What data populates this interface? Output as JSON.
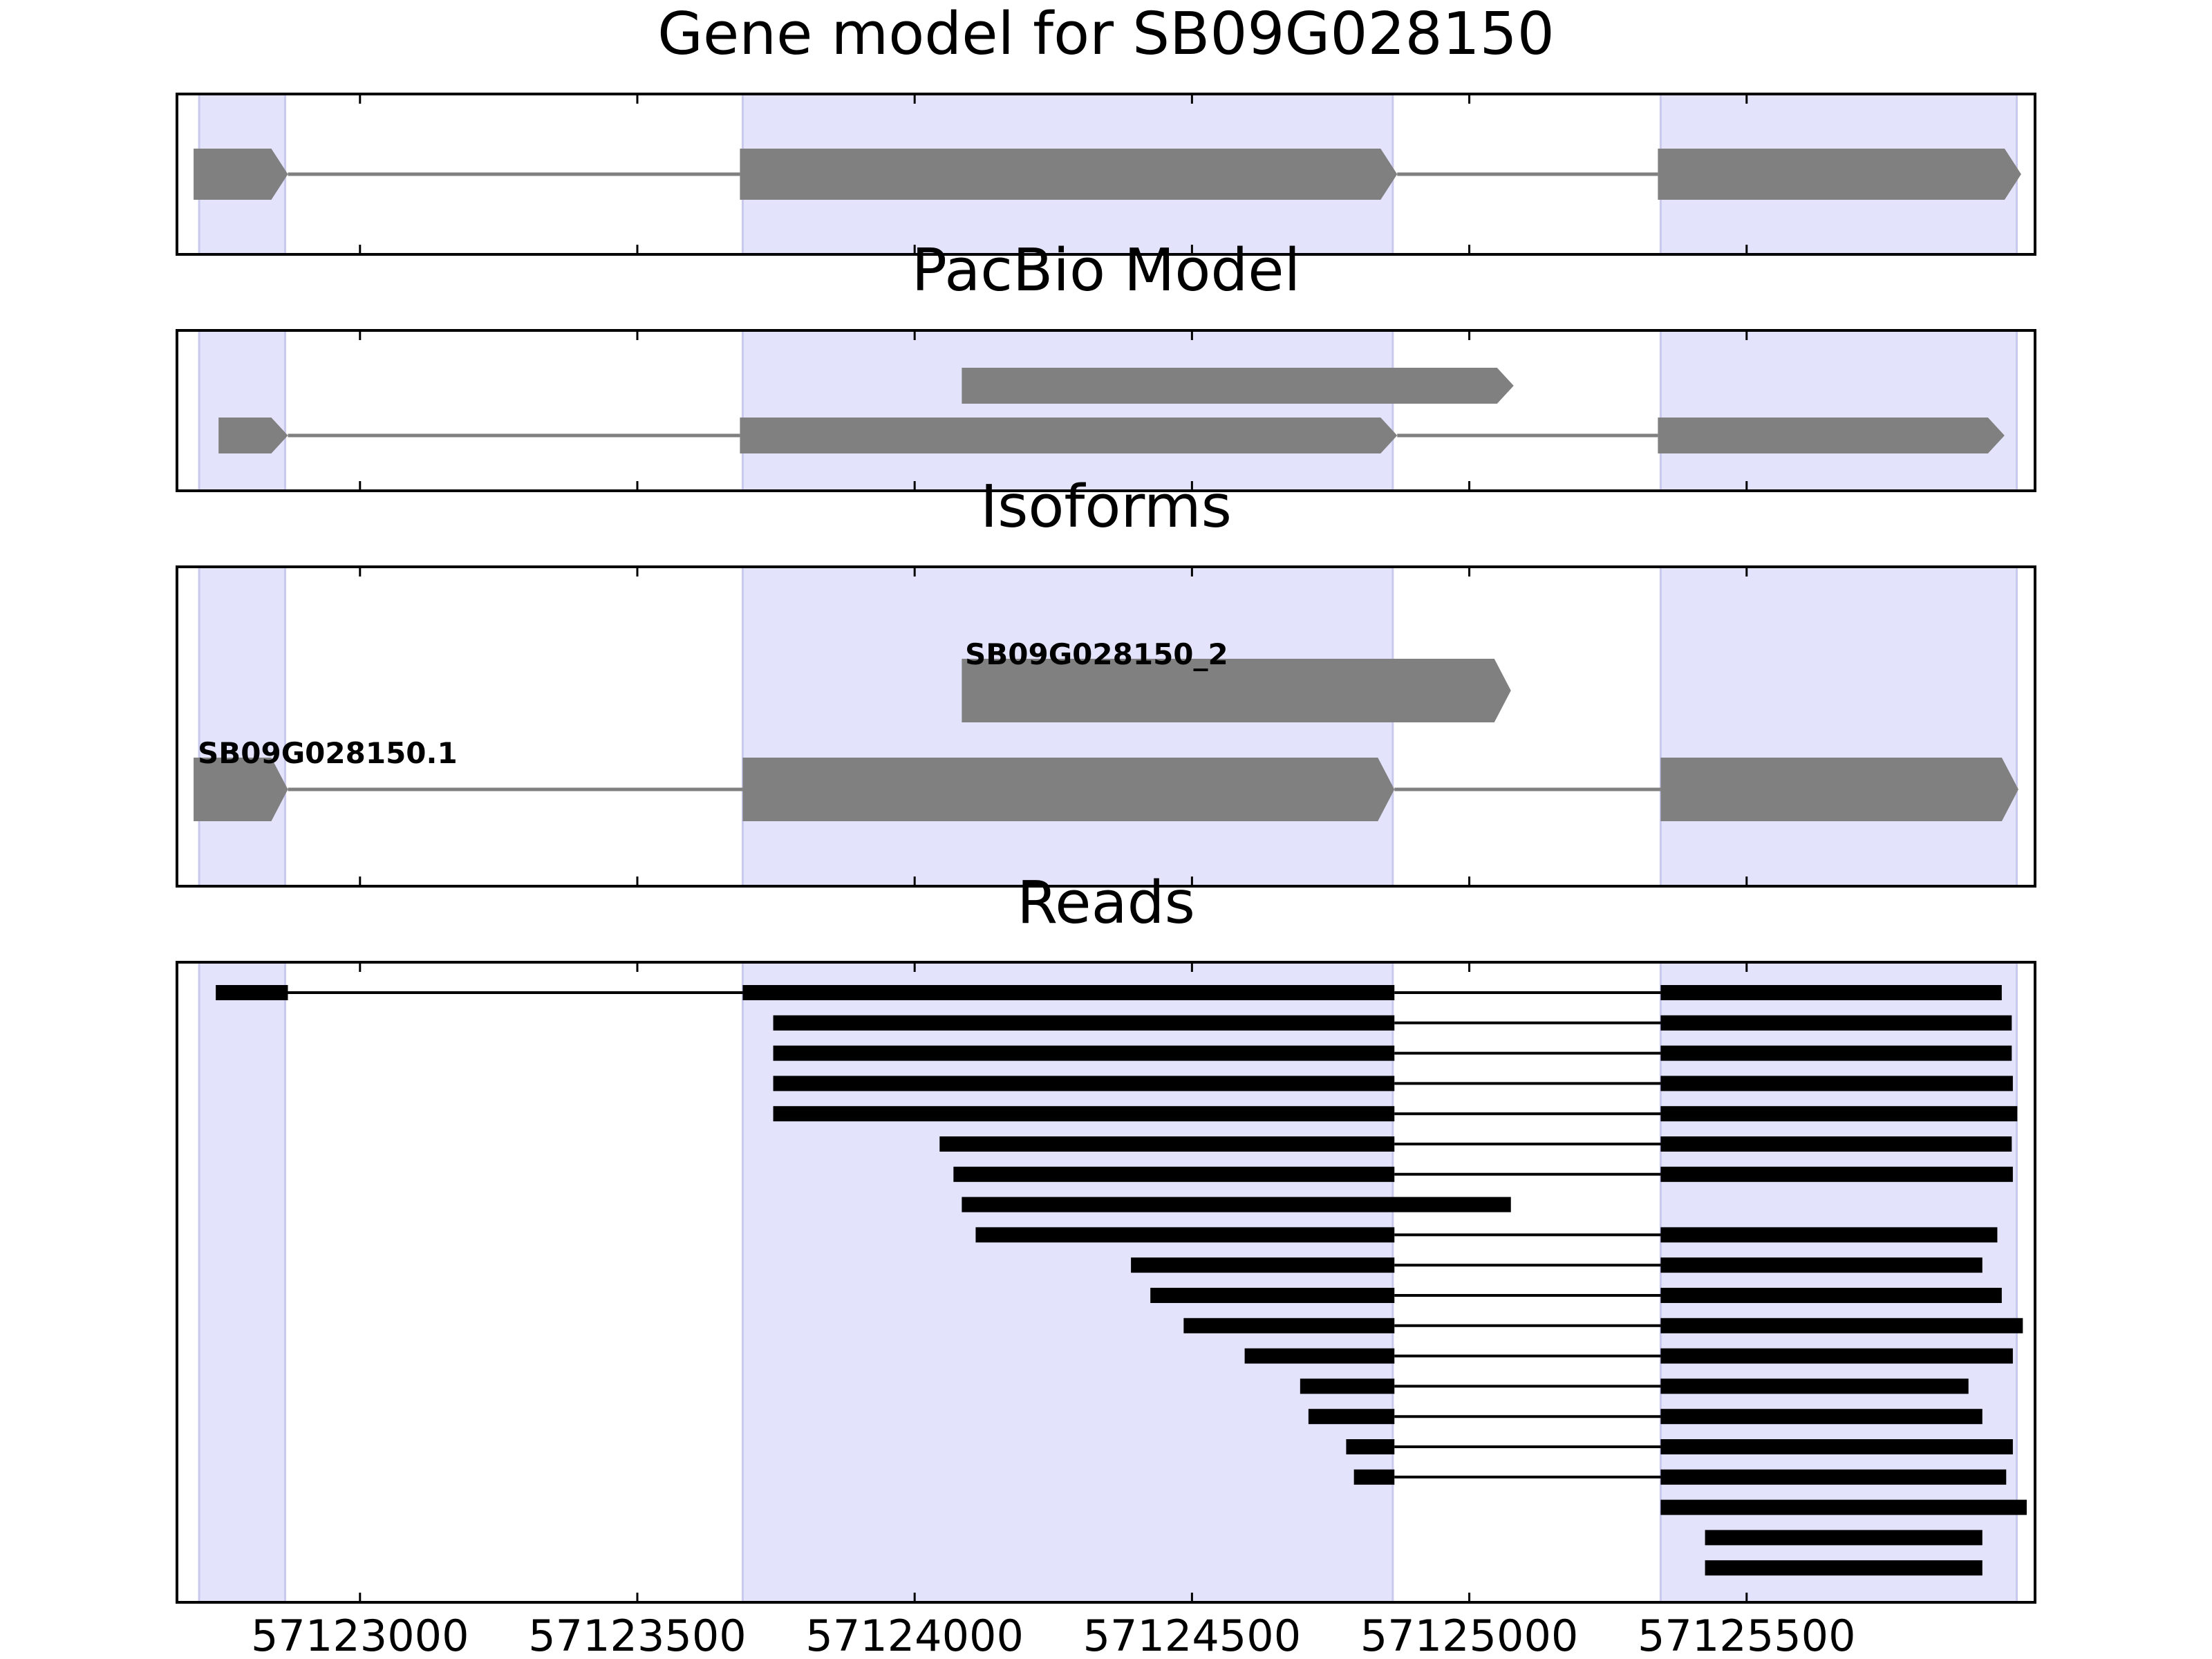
{
  "colors": {
    "exon_region": "#e3e3fb",
    "exon_region_edge": "#c9c9ee",
    "feature": "#808080",
    "read": "#000000",
    "frame": "#000000"
  },
  "chart_data": {
    "type": "gene-track",
    "x_axis": {
      "xlim": [
        57122670,
        57126020
      ],
      "ticks": [
        57123000,
        57123500,
        57124000,
        57124500,
        57125000,
        57125500
      ],
      "tick_labels": [
        "57123000",
        "57123500",
        "57124000",
        "57124500",
        "57125000",
        "57125500"
      ]
    },
    "exon_regions": [
      [
        57122710,
        57122865
      ],
      [
        57123690,
        57124862
      ],
      [
        57125345,
        57125987
      ]
    ],
    "panels": [
      {
        "id": "gene-model",
        "title": "Gene model for SB09G028150",
        "transcripts": [
          {
            "label": "",
            "row": 0,
            "exons": [
              [
                57122700,
                57122870
              ],
              [
                57123685,
                57124870
              ],
              [
                57125340,
                57125995
              ]
            ]
          }
        ]
      },
      {
        "id": "pacbio",
        "title": "PacBio Model",
        "transcripts": [
          {
            "label": "",
            "row": 0,
            "exons": [
              [
                57122745,
                57122870
              ],
              [
                57123685,
                57124870
              ],
              [
                57125340,
                57125965
              ]
            ]
          },
          {
            "label": "",
            "row": 1,
            "exons": [
              [
                57124085,
                57125080
              ]
            ]
          }
        ]
      },
      {
        "id": "isoforms",
        "title": "Isoforms",
        "transcripts": [
          {
            "label": "SB09G028150.1",
            "row": 0,
            "exons": [
              [
                57122700,
                57122870
              ],
              [
                57123690,
                57124865
              ],
              [
                57125345,
                57125990
              ]
            ]
          },
          {
            "label": "SB09G028150_2",
            "row": 1,
            "exons": [
              [
                57124085,
                57125075
              ]
            ]
          }
        ]
      }
    ],
    "reads_panel": {
      "title": "Reads",
      "reads": [
        [
          [
            57122740,
            57122870
          ],
          [
            57123690,
            57124865
          ],
          [
            57125345,
            57125960
          ]
        ],
        [
          [
            57123745,
            57124865
          ],
          [
            57125345,
            57125978
          ]
        ],
        [
          [
            57123745,
            57124865
          ],
          [
            57125345,
            57125978
          ]
        ],
        [
          [
            57123745,
            57124865
          ],
          [
            57125345,
            57125980
          ]
        ],
        [
          [
            57123745,
            57124865
          ],
          [
            57125345,
            57125988
          ]
        ],
        [
          [
            57124045,
            57124865
          ],
          [
            57125345,
            57125978
          ]
        ],
        [
          [
            57124070,
            57124865
          ],
          [
            57125345,
            57125980
          ]
        ],
        [
          [
            57124085,
            57125075
          ]
        ],
        [
          [
            57124110,
            57124865
          ],
          [
            57125345,
            57125952
          ]
        ],
        [
          [
            57124390,
            57124865
          ],
          [
            57125345,
            57125925
          ]
        ],
        [
          [
            57124425,
            57124865
          ],
          [
            57125345,
            57125960
          ]
        ],
        [
          [
            57124485,
            57124865
          ],
          [
            57125345,
            57125998
          ]
        ],
        [
          [
            57124595,
            57124865
          ],
          [
            57125345,
            57125980
          ]
        ],
        [
          [
            57124695,
            57124865
          ],
          [
            57125345,
            57125900
          ]
        ],
        [
          [
            57124710,
            57124865
          ],
          [
            57125345,
            57125925
          ]
        ],
        [
          [
            57124778,
            57124865
          ],
          [
            57125345,
            57125980
          ]
        ],
        [
          [
            57124792,
            57124865
          ],
          [
            57125345,
            57125968
          ]
        ],
        [
          [
            57125345,
            57126005
          ]
        ],
        [
          [
            57125425,
            57125925
          ]
        ],
        [
          [
            57125425,
            57125925
          ]
        ]
      ]
    }
  }
}
